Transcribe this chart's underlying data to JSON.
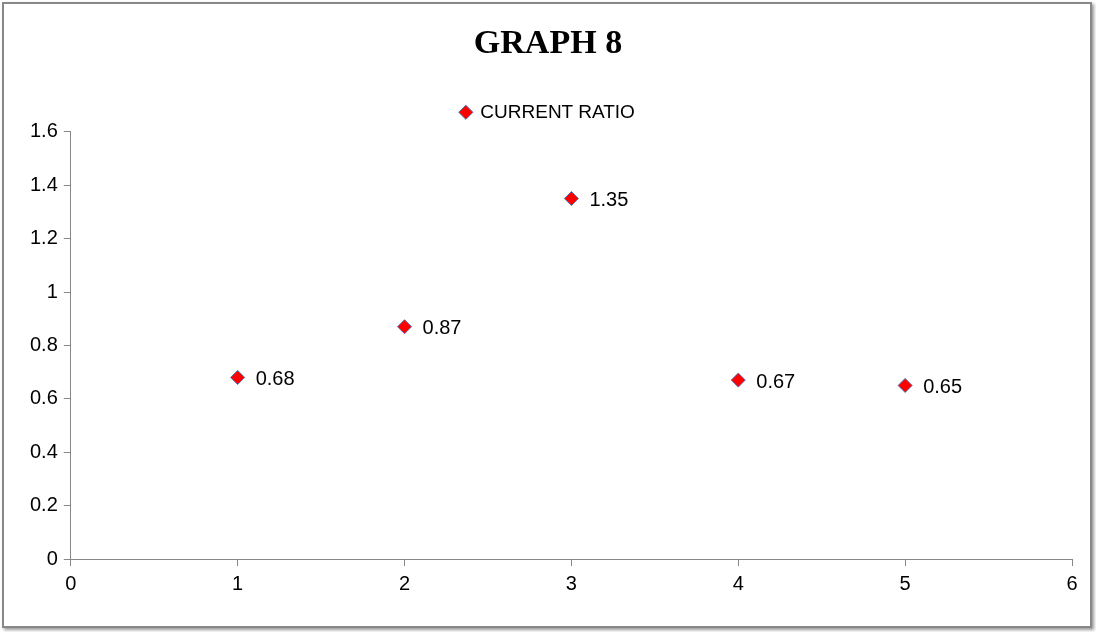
{
  "chart_data": {
    "type": "scatter",
    "title": "GRAPH 8",
    "x": [
      1,
      2,
      3,
      4,
      5
    ],
    "series": [
      {
        "name": "CURRENT RATIO",
        "color": "#ff0000",
        "values": [
          0.68,
          0.87,
          1.35,
          0.67,
          0.65
        ]
      }
    ],
    "xlim": [
      0,
      6
    ],
    "xticks": [
      0,
      1,
      2,
      3,
      4,
      5,
      6
    ],
    "ylim": [
      0,
      1.6
    ],
    "yticks": [
      0,
      0.2,
      0.4,
      0.6,
      0.8,
      1,
      1.2,
      1.4,
      1.6
    ],
    "grid": false,
    "legend": "top",
    "marker": "diamond",
    "data_labels": true
  }
}
